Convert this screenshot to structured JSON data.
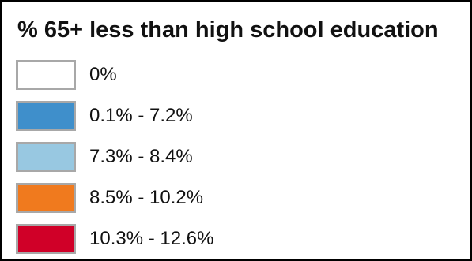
{
  "legend": {
    "title": "% 65+ less than high school education",
    "items": [
      {
        "label": "0%",
        "color": "#ffffff"
      },
      {
        "label": "0.1% - 7.2%",
        "color": "#3f8fcb"
      },
      {
        "label": "7.3% - 8.4%",
        "color": "#98c8e1"
      },
      {
        "label": "8.5% - 10.2%",
        "color": "#f07a1e"
      },
      {
        "label": "10.3% - 12.6%",
        "color": "#d00028"
      }
    ]
  }
}
